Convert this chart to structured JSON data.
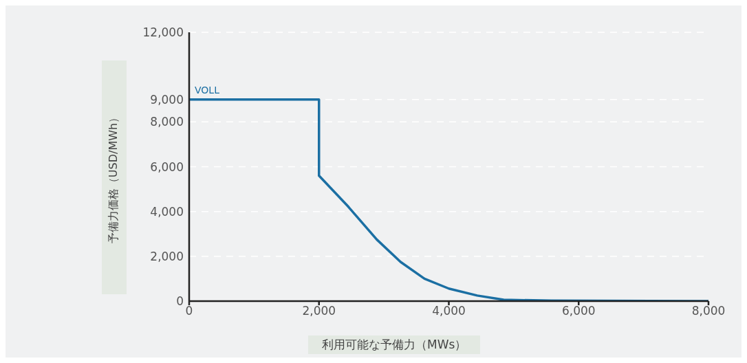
{
  "chart_data": {
    "type": "line",
    "xlabel": "利用可能な予備力（MWs）",
    "ylabel": "予備力価格（USD/MWh）",
    "series": [
      {
        "color": "#1b6fa3",
        "x": [
          0,
          2000,
          2000,
          2441,
          2890,
          3257,
          3625,
          4000,
          4437,
          4845,
          5580,
          8000
        ],
        "values": [
          9000,
          9000,
          5600,
          4250,
          2750,
          1750,
          1000,
          560,
          250,
          60,
          20,
          0
        ]
      }
    ],
    "xlim": [
      0,
      8000
    ],
    "xticks": [
      0,
      {
        "value": 2000,
        "label": "2,000"
      },
      {
        "value": 4000,
        "label": "4,000"
      },
      {
        "value": 6000,
        "label": "6,000"
      },
      {
        "value": 8000,
        "label": "8,000"
      }
    ],
    "ylim": [
      0,
      12000
    ],
    "yticks": [
      0,
      {
        "value": 2000,
        "label": "2,000"
      },
      {
        "value": 4000,
        "label": "4,000"
      },
      {
        "value": 6000,
        "label": "6,000"
      },
      {
        "value": 8000,
        "label": "8,000"
      },
      {
        "value": 9000,
        "label": "9,000"
      },
      {
        "value": 12000,
        "label": "12,000"
      }
    ],
    "grid": "y",
    "legend": false,
    "marker": "none",
    "line_style": "solid",
    "annotations": [
      {
        "text": "VOLL",
        "x": 0,
        "y": 9000
      }
    ]
  }
}
